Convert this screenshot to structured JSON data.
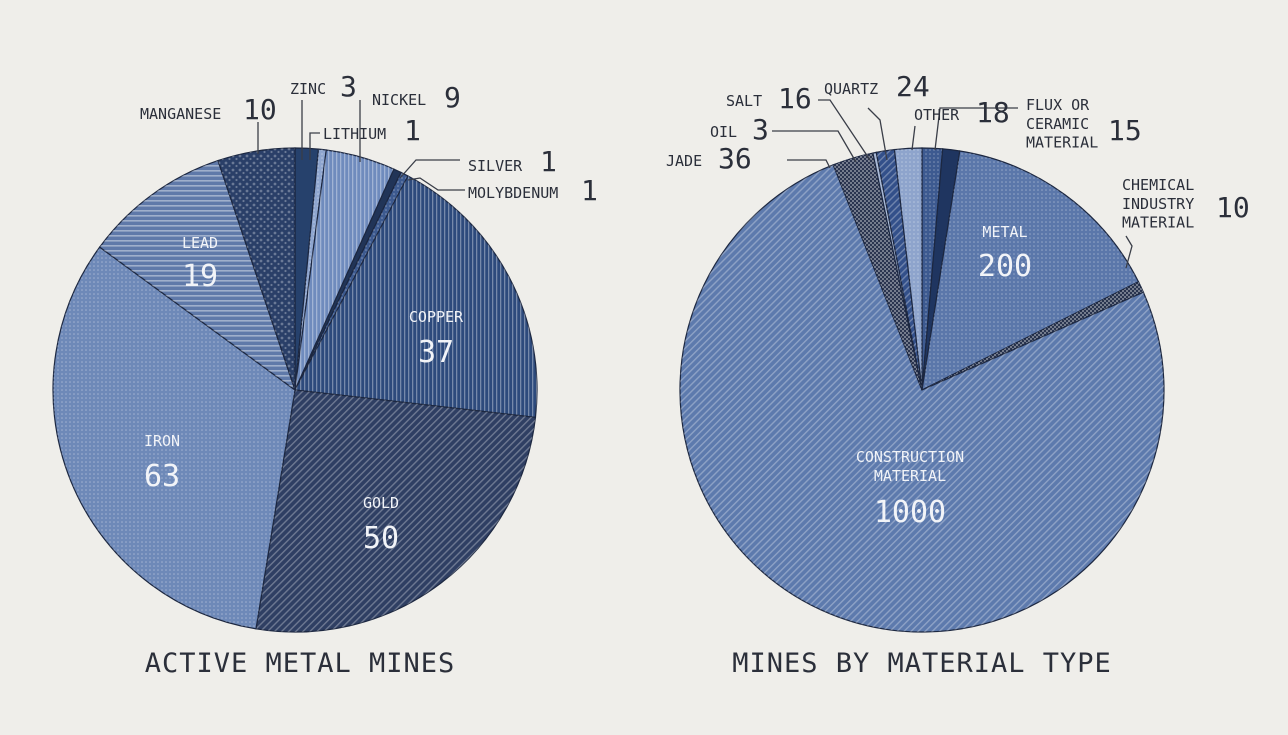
{
  "chart_data": [
    {
      "type": "pie",
      "title": "ACTIVE METAL MINES",
      "slices": [
        {
          "label": "ZINC",
          "value": 3,
          "color": "#26416c",
          "pattern": "solid"
        },
        {
          "label": "LITHIUM",
          "value": 1,
          "color": "#8fa6cf",
          "pattern": "dots"
        },
        {
          "label": "NICKEL",
          "value": 9,
          "color": "#6f8bbd",
          "pattern": "vert"
        },
        {
          "label": "SILVER",
          "value": 1,
          "color": "#213457",
          "pattern": "solid"
        },
        {
          "label": "MOLYBDENUM",
          "value": 1,
          "color": "#3d5a8f",
          "pattern": "dots"
        },
        {
          "label": "COPPER",
          "value": 37,
          "color": "#2d4a7c",
          "pattern": "vert"
        },
        {
          "label": "GOLD",
          "value": 50,
          "color": "#2f3f63",
          "pattern": "diag"
        },
        {
          "label": "IRON",
          "value": 63,
          "color": "#6e89b8",
          "pattern": "dots"
        },
        {
          "label": "LEAD",
          "value": 19,
          "color": "#5f79a9",
          "pattern": "horiz"
        },
        {
          "label": "MANGANESE",
          "value": 10,
          "color": "#2a3f68",
          "pattern": "blob"
        }
      ]
    },
    {
      "type": "pie",
      "title": "MINES BY MATERIAL TYPE",
      "slices": [
        {
          "label": "OTHER",
          "value": 18,
          "color": "#3d5a90",
          "pattern": "dots"
        },
        {
          "label": "FLUX OR CERAMIC MATERIAL",
          "value": 15,
          "color": "#1f3560",
          "pattern": "solid"
        },
        {
          "label": "METAL",
          "value": 200,
          "color": "#5b77aa",
          "pattern": "dots"
        },
        {
          "label": "CHEMICAL INDUSTRY MATERIAL",
          "value": 10,
          "color": "#2a3550",
          "pattern": "check"
        },
        {
          "label": "CONSTRUCTION MATERIAL",
          "value": 1000,
          "color": "#5d7aad",
          "pattern": "diag"
        },
        {
          "label": "JADE",
          "value": 36,
          "color": "#2b3550",
          "pattern": "check"
        },
        {
          "label": "OIL",
          "value": 3,
          "color": "#a9b9d6",
          "pattern": "solid"
        },
        {
          "label": "SALT",
          "value": 16,
          "color": "#33508a",
          "pattern": "diag"
        },
        {
          "label": "QUARTZ",
          "value": 24,
          "color": "#8ea4cc",
          "pattern": "dots"
        }
      ]
    }
  ]
}
